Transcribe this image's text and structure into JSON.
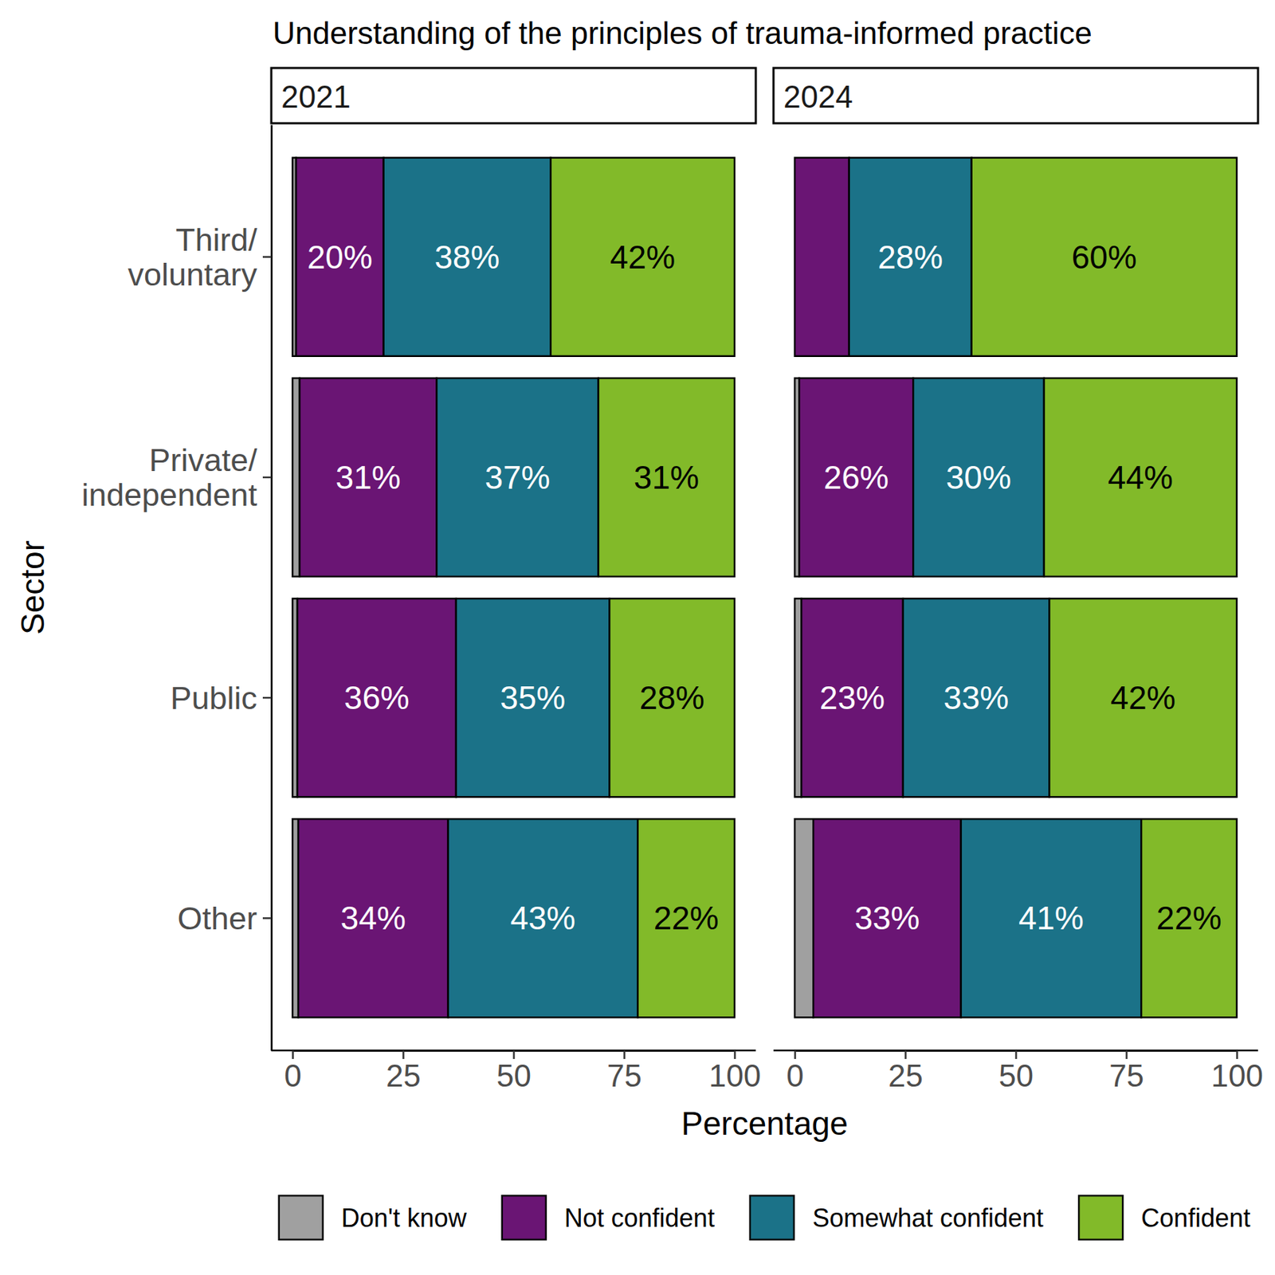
{
  "chart_data": {
    "type": "bar",
    "title": "Understanding of the principles of trauma-informed practice",
    "xlabel": "Percentage",
    "ylabel": "Sector",
    "orientation": "horizontal",
    "stacked": true,
    "data_labels": true,
    "grid": false,
    "legend": "bottom",
    "xlim": [
      0,
      100
    ],
    "xticks": [
      0,
      25,
      50,
      75,
      100
    ],
    "categories": [
      "Third/\nvoluntary",
      "Private/\nindependent",
      "Public",
      "Other"
    ],
    "panels": [
      "2021",
      "2024"
    ],
    "series": [
      {
        "name": "Don't know",
        "color": "#a0a0a0",
        "values": [
          [
            0.8,
            1.6,
            1.1,
            1.3
          ],
          [
            0,
            1.0,
            1.5,
            4.2
          ]
        ],
        "value_labels": [
          [
            null,
            null,
            null,
            null
          ],
          [
            null,
            null,
            null,
            null
          ]
        ]
      },
      {
        "name": "Not confident",
        "color": "#6a1574",
        "values": [
          [
            19.8,
            31.0,
            35.9,
            33.9
          ],
          [
            12.3,
            25.8,
            23.0,
            33.4
          ]
        ],
        "value_labels": [
          [
            "20%",
            "31%",
            "36%",
            "34%"
          ],
          [
            null,
            "26%",
            "23%",
            "33%"
          ]
        ]
      },
      {
        "name": "Somewhat confident",
        "color": "#1b7288",
        "values": [
          [
            37.8,
            36.6,
            34.7,
            42.9
          ],
          [
            27.7,
            29.6,
            33.1,
            40.8
          ]
        ],
        "value_labels": [
          [
            "38%",
            "37%",
            "35%",
            "43%"
          ],
          [
            "28%",
            "30%",
            "33%",
            "41%"
          ]
        ]
      },
      {
        "name": "Confident",
        "color": "#82ba29",
        "values": [
          [
            41.6,
            30.8,
            28.3,
            21.9
          ],
          [
            60.0,
            43.6,
            42.4,
            21.6
          ]
        ],
        "value_labels": [
          [
            "42%",
            "31%",
            "28%",
            "22%"
          ],
          [
            "60%",
            "44%",
            "42%",
            "22%"
          ]
        ]
      }
    ]
  }
}
